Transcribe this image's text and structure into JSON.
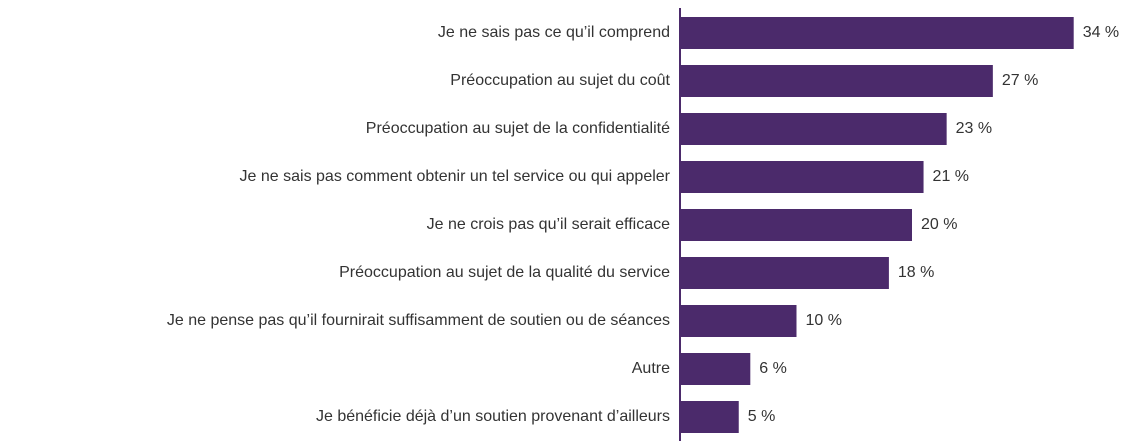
{
  "chart_data": {
    "type": "bar",
    "orientation": "horizontal",
    "categories": [
      "Je ne sais pas ce qu’il comprend",
      "Préoccupation au sujet du coût",
      "Préoccupation au sujet de la confidentialité",
      "Je ne sais pas comment obtenir un tel service ou qui appeler",
      "Je ne crois pas qu’il serait efficace",
      "Préoccupation au sujet de la qualité du service",
      "Je ne pense pas qu’il fournirait suffisamment de soutien ou de séances",
      "Autre",
      "Je bénéficie déjà d’un soutien provenant d’ailleurs"
    ],
    "values": [
      34,
      27,
      23,
      21,
      20,
      18,
      10,
      6,
      5
    ],
    "value_labels": [
      "34 %",
      "27 %",
      "23 %",
      "21 %",
      "20 %",
      "18 %",
      "10 %",
      "6 %",
      "5 %"
    ],
    "color": "#4b2a6b"
  }
}
